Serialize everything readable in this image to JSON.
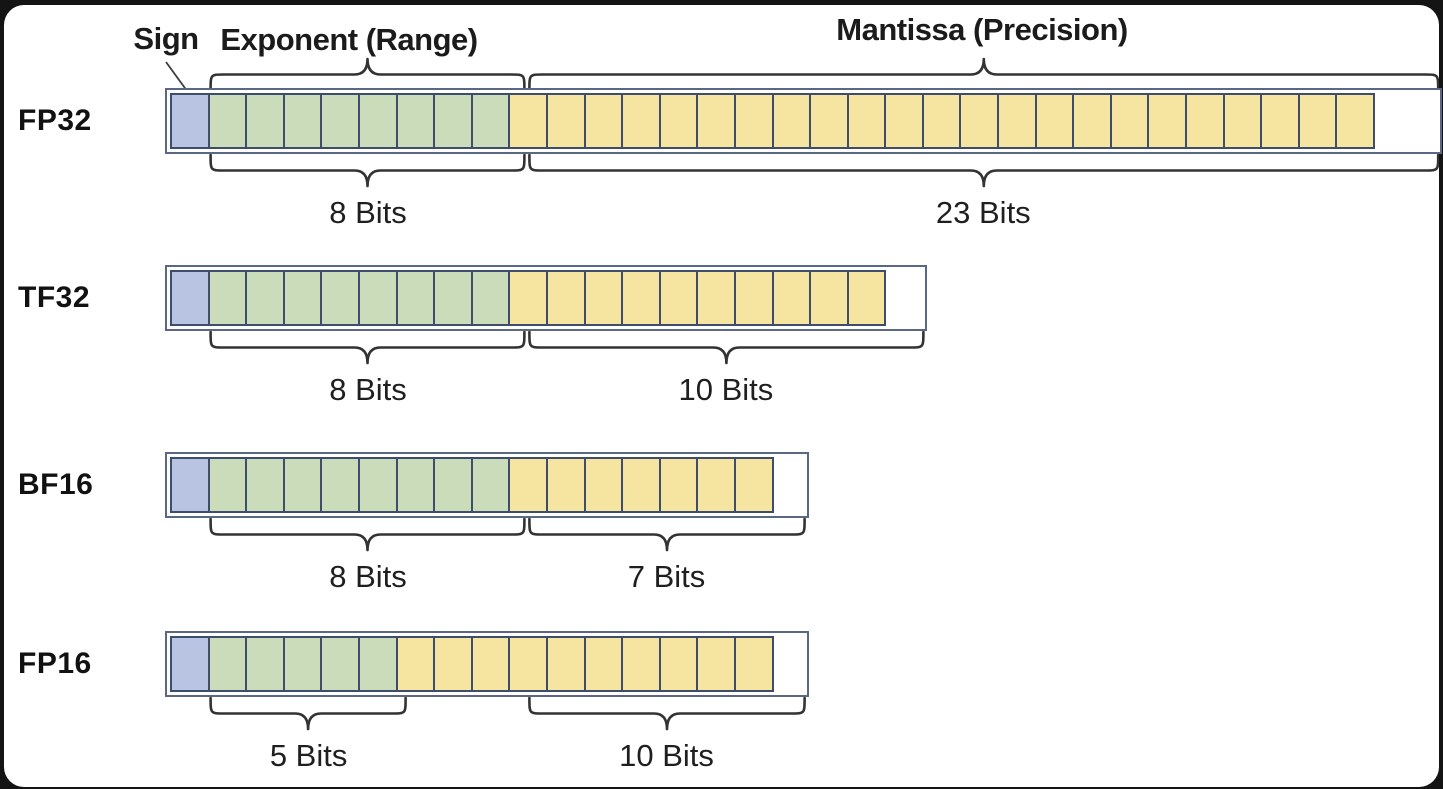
{
  "figure": {
    "title_row_labels": {
      "sign": "Sign",
      "exponent": "Exponent (Range)",
      "mantissa": "Mantissa (Precision)"
    },
    "colors": {
      "background": "#141414",
      "canvas": "#ffffff",
      "sign_fill": "#b8c4e2",
      "exponent_fill": "#cbdcba",
      "mantissa_fill": "#f6e5a0",
      "cell_border": "#3f4d6d",
      "row_border": "#5a6886",
      "brace": "#333333",
      "text": "#1b1b1b"
    },
    "formats": [
      {
        "name": "FP32",
        "sign_bits": 1,
        "exponent_bits": 8,
        "mantissa_bits": 23,
        "exponent_caption": "8 Bits",
        "mantissa_caption": "23 Bits",
        "mantissa_brace_inset_bits": 0
      },
      {
        "name": "TF32",
        "sign_bits": 1,
        "exponent_bits": 8,
        "mantissa_bits": 10,
        "exponent_caption": "8 Bits",
        "mantissa_caption": "10 Bits",
        "mantissa_brace_inset_bits": 0
      },
      {
        "name": "BF16",
        "sign_bits": 1,
        "exponent_bits": 8,
        "mantissa_bits": 7,
        "exponent_caption": "8 Bits",
        "mantissa_caption": "7 Bits",
        "mantissa_brace_inset_bits": 0
      },
      {
        "name": "FP16",
        "sign_bits": 1,
        "exponent_bits": 5,
        "mantissa_bits": 10,
        "exponent_caption": "5 Bits",
        "mantissa_caption": "10 Bits",
        "mantissa_brace_inset_bits": 3
      }
    ]
  }
}
